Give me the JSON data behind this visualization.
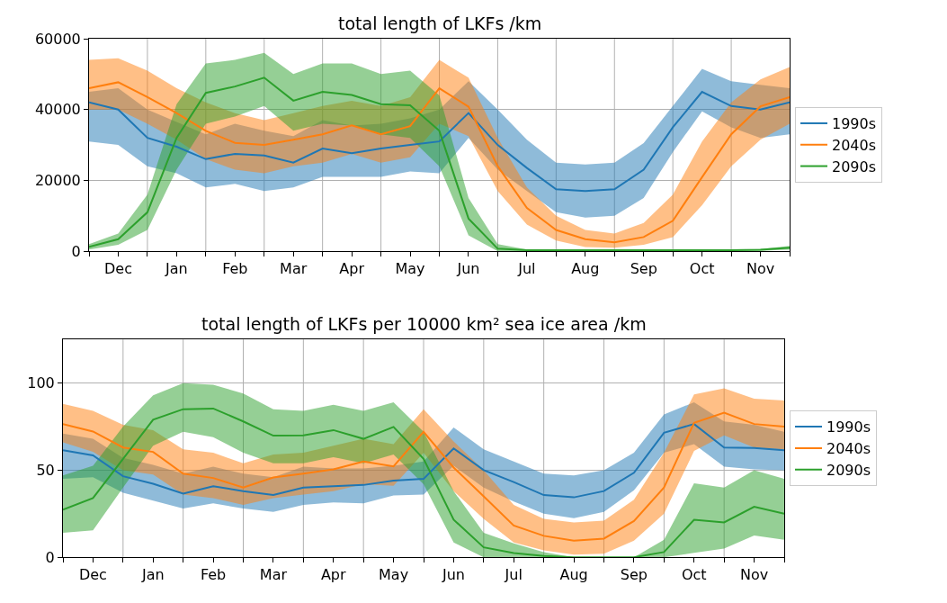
{
  "chart_data": [
    {
      "type": "line",
      "title": "total length of LKFs /km",
      "categories": [
        null,
        "Dec",
        null,
        "Jan",
        null,
        "Feb",
        null,
        "Mar",
        null,
        "Apr",
        null,
        "May",
        null,
        "Jun",
        null,
        "Jul",
        null,
        "Aug",
        null,
        "Sep",
        null,
        "Oct",
        null,
        "Nov",
        null
      ],
      "series": [
        {
          "name": "1990s",
          "color": "#1f77b4",
          "values": [
            42000,
            40000,
            32000,
            29500,
            26000,
            27500,
            27000,
            25000,
            29000,
            27700,
            29000,
            30000,
            31000,
            39000,
            30000,
            23500,
            17500,
            17000,
            17500,
            23000,
            35000,
            45000,
            41000,
            40000,
            42000
          ],
          "upper": [
            45000,
            46000,
            40000,
            36500,
            33000,
            36000,
            34000,
            32500,
            37000,
            35500,
            36000,
            37500,
            40000,
            48000,
            40000,
            31500,
            25000,
            24500,
            25000,
            30500,
            41000,
            51500,
            48000,
            47000,
            46000
          ],
          "lower": [
            31000,
            30000,
            24000,
            22000,
            18000,
            19000,
            17000,
            18000,
            21000,
            21000,
            21000,
            22500,
            22000,
            32000,
            23000,
            17000,
            11000,
            9500,
            10000,
            15000,
            28000,
            39500,
            35000,
            32000,
            33000
          ]
        },
        {
          "name": "2040s",
          "color": "#ff7f0e",
          "values": [
            46000,
            47700,
            43500,
            39000,
            34000,
            30600,
            30000,
            31500,
            33000,
            35500,
            33000,
            35300,
            46000,
            40800,
            24000,
            12200,
            6000,
            3400,
            2500,
            4000,
            8600,
            20900,
            33000,
            40900,
            43500
          ],
          "upper": [
            54000,
            54500,
            51000,
            46000,
            42000,
            39000,
            37000,
            39000,
            41000,
            42500,
            41000,
            43500,
            54000,
            49000,
            32000,
            18000,
            10000,
            6000,
            5000,
            8000,
            16000,
            31000,
            42000,
            48500,
            52000
          ],
          "lower": [
            40000,
            40000,
            36000,
            31500,
            26000,
            23000,
            22000,
            24000,
            25000,
            27500,
            25000,
            26500,
            36000,
            32500,
            17000,
            7500,
            3000,
            1200,
            1000,
            1800,
            4000,
            13000,
            24000,
            31500,
            36000
          ]
        },
        {
          "name": "2090s",
          "color": "#2ca02c",
          "values": [
            1200,
            3400,
            11000,
            32000,
            44700,
            46500,
            49000,
            42500,
            45000,
            44100,
            41500,
            41200,
            34000,
            9200,
            700,
            300,
            300,
            300,
            300,
            300,
            300,
            300,
            300,
            400,
            1000
          ],
          "upper": [
            2000,
            5000,
            16000,
            41500,
            53000,
            54000,
            56000,
            50000,
            53000,
            53000,
            50000,
            51000,
            44000,
            15000,
            2000,
            500,
            500,
            500,
            500,
            500,
            500,
            500,
            500,
            600,
            1500
          ],
          "lower": [
            500,
            1800,
            6000,
            23000,
            36000,
            38000,
            41000,
            34000,
            36000,
            35500,
            33000,
            32000,
            24000,
            4500,
            0,
            0,
            0,
            0,
            0,
            0,
            0,
            0,
            0,
            100,
            500
          ]
        }
      ],
      "ylim": [
        0,
        60000
      ],
      "yticks": [
        0,
        20000,
        40000,
        60000
      ],
      "grid": true,
      "legend": "right",
      "line_style": "solid"
    },
    {
      "type": "line",
      "title": "total length of LKFs per 10000 km² sea ice area /km",
      "categories": [
        null,
        "Dec",
        null,
        "Jan",
        null,
        "Feb",
        null,
        "Mar",
        null,
        "Apr",
        null,
        "May",
        null,
        "Jun",
        null,
        "Jul",
        null,
        "Aug",
        null,
        "Sep",
        null,
        "Oct",
        null,
        "Nov",
        null
      ],
      "series": [
        {
          "name": "1990s",
          "color": "#1f77b4",
          "values": [
            61.5,
            58.5,
            46.5,
            42.2,
            36.5,
            40.8,
            38,
            35.8,
            40,
            40.8,
            41.5,
            44,
            45,
            62.5,
            50,
            43.2,
            35.7,
            34.4,
            38,
            48.5,
            71.5,
            76.5,
            63,
            62.8,
            61.5
          ],
          "upper": [
            71,
            68,
            57,
            53,
            48,
            52,
            48,
            46,
            52,
            51,
            51,
            52.5,
            55,
            74.5,
            62,
            55,
            48,
            47,
            50,
            60,
            82,
            89,
            78,
            76,
            72
          ],
          "lower": [
            45,
            46,
            37,
            32.5,
            28,
            31,
            28,
            26,
            30,
            31.5,
            31,
            35.5,
            36,
            52.5,
            40,
            32,
            25,
            22.5,
            26,
            38.5,
            60,
            65,
            52,
            50.5,
            50
          ]
        },
        {
          "name": "2040s",
          "color": "#ff7f0e",
          "values": [
            76.5,
            72.2,
            63,
            60.5,
            48,
            45.5,
            40,
            45.8,
            48,
            50.5,
            55,
            52.2,
            72,
            51.5,
            35,
            18.2,
            12.3,
            9.5,
            10.7,
            20.8,
            40,
            77.2,
            83,
            76.5,
            75
          ],
          "upper": [
            88,
            84,
            76,
            73,
            62,
            60,
            54,
            59,
            60,
            64,
            68,
            65,
            85,
            66.5,
            50,
            30,
            22,
            20,
            21,
            33,
            60,
            93.5,
            97,
            91,
            90
          ],
          "lower": [
            66,
            60.5,
            50,
            47.5,
            36,
            34,
            30,
            34,
            36,
            38,
            42,
            41,
            60,
            38,
            22,
            8.5,
            4,
            1.5,
            2,
            9.5,
            25,
            61,
            70,
            63,
            62
          ]
        },
        {
          "name": "2090s",
          "color": "#2ca02c",
          "values": [
            27.3,
            34,
            56.5,
            79,
            85,
            85.4,
            78,
            69.8,
            70,
            73,
            68,
            74.8,
            56.5,
            21.6,
            5.7,
            2.4,
            0.7,
            0,
            0,
            0,
            3,
            21.5,
            20,
            29,
            25
          ],
          "upper": [
            47,
            52.5,
            75,
            93,
            100,
            99,
            94,
            85,
            84,
            87.5,
            84,
            89,
            72,
            38,
            14,
            8,
            3,
            0,
            0,
            0,
            10,
            42.5,
            40,
            50,
            45
          ],
          "lower": [
            14,
            15.5,
            40,
            64,
            72,
            69,
            60,
            54,
            54,
            57.5,
            54,
            59,
            42,
            8.5,
            0,
            0,
            0,
            0,
            0,
            0,
            0,
            2.5,
            5,
            12.5,
            10
          ]
        }
      ],
      "ylim": [
        0,
        125
      ],
      "yticks": [
        0,
        50,
        100
      ],
      "grid": true,
      "legend": "right",
      "line_style": "solid"
    }
  ]
}
